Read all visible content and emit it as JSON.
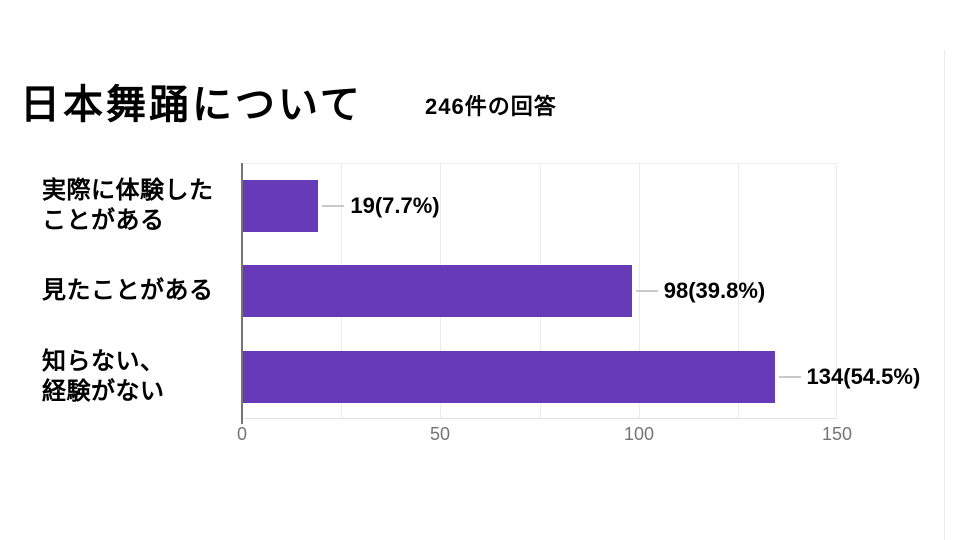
{
  "header": {
    "title": "日本舞踊について",
    "responses": "246件の回答"
  },
  "chart_data": {
    "type": "bar",
    "orientation": "horizontal",
    "title": "日本舞踊について",
    "subtitle": "246件の回答",
    "categories": [
      "実際に体験した\nことがある",
      "見たことがある",
      "知らない、\n経験がない"
    ],
    "values": [
      19,
      98,
      134
    ],
    "percentages": [
      7.7,
      39.8,
      54.5
    ],
    "data_labels": [
      "19(7.7%)",
      "98(39.8%)",
      "134(54.5%)"
    ],
    "x_ticks": [
      "0",
      "50",
      "100",
      "150"
    ],
    "xlim": [
      0,
      150
    ],
    "gridline_step": 25,
    "grid_on": true,
    "legend": "none",
    "colors": {
      "bar": "#673ab7",
      "axis_line": "#757575",
      "gridline": "#ececec",
      "tick_text": "#757575",
      "label_text": "#000000",
      "background": "#ffffff"
    }
  }
}
